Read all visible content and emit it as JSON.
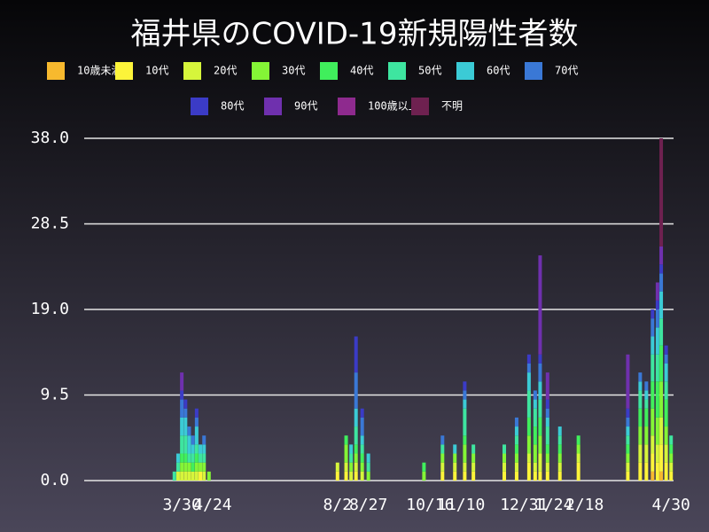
{
  "chart_data": {
    "type": "stacked-bar",
    "title": "福井県のCOVID-19新規陽性者数",
    "x": [
      83,
      86,
      89,
      92,
      95,
      98,
      101,
      104,
      107,
      111,
      215,
      222,
      226,
      230,
      235,
      240,
      285,
      300,
      310,
      318,
      325,
      350,
      360,
      370,
      375,
      379,
      385,
      395,
      410,
      450,
      460,
      465,
      470,
      474,
      477,
      481,
      485
    ],
    "xlim": [
      10,
      487
    ],
    "xticks": [
      {
        "value": 89,
        "label": "3/30"
      },
      {
        "value": 114,
        "label": "4/24"
      },
      {
        "value": 215,
        "label": "8/2"
      },
      {
        "value": 240,
        "label": "8/27"
      },
      {
        "value": 290,
        "label": "10/16"
      },
      {
        "value": 315,
        "label": "11/10"
      },
      {
        "value": 366,
        "label": "12/31"
      },
      {
        "value": 390,
        "label": "1/24"
      },
      {
        "value": 415,
        "label": "2/18"
      },
      {
        "value": 485,
        "label": "4/30"
      }
    ],
    "ylim": [
      0,
      38
    ],
    "yticks": [
      {
        "value": 0,
        "label": "0.0"
      },
      9.5,
      {
        "value": 19,
        "label": "19.0"
      },
      28.5,
      {
        "value": 38,
        "label": "38.0"
      }
    ],
    "grid": true,
    "series": [
      {
        "name": "10歳未満",
        "color": "#f7b92e",
        "values": [
          0,
          0,
          0,
          0,
          0,
          0,
          0,
          0,
          0,
          0,
          0,
          0,
          0,
          0,
          0,
          0,
          0,
          0,
          0,
          0,
          0,
          0,
          0,
          0,
          0,
          0,
          0,
          0,
          0,
          0,
          0,
          0,
          1,
          0,
          1,
          0,
          0
        ]
      },
      {
        "name": "10代",
        "color": "#fcf43a",
        "values": [
          0,
          0,
          0,
          0,
          0,
          0,
          0,
          1,
          0,
          0,
          1,
          1,
          0,
          1,
          0,
          0,
          0,
          1,
          1,
          1,
          1,
          1,
          1,
          2,
          1,
          1,
          1,
          1,
          2,
          1,
          2,
          2,
          2,
          2,
          3,
          2,
          1
        ]
      },
      {
        "name": "20代",
        "color": "#d6f53b",
        "values": [
          0,
          1,
          1,
          1,
          1,
          1,
          1,
          0,
          1,
          0,
          1,
          1,
          1,
          1,
          1,
          0,
          0,
          1,
          1,
          1,
          1,
          1,
          1,
          1,
          1,
          2,
          1,
          1,
          1,
          1,
          2,
          2,
          2,
          2,
          3,
          2,
          1
        ]
      },
      {
        "name": "30代",
        "color": "#84f536",
        "values": [
          0,
          0,
          1,
          1,
          1,
          0,
          1,
          1,
          1,
          1,
          0,
          2,
          1,
          1,
          1,
          1,
          1,
          1,
          1,
          2,
          1,
          1,
          1,
          2,
          2,
          2,
          1,
          1,
          1,
          1,
          2,
          2,
          3,
          3,
          4,
          2,
          1
        ]
      },
      {
        "name": "40代",
        "color": "#40ef5c",
        "values": [
          0,
          0,
          1,
          1,
          0,
          1,
          1,
          0,
          0,
          0,
          0,
          1,
          0,
          1,
          1,
          0,
          1,
          0,
          0,
          1,
          0,
          0,
          1,
          2,
          2,
          2,
          1,
          1,
          1,
          1,
          2,
          2,
          3,
          4,
          4,
          3,
          1
        ]
      },
      {
        "name": "50代",
        "color": "#3ee5a0",
        "values": [
          1,
          1,
          2,
          2,
          1,
          1,
          1,
          1,
          1,
          0,
          0,
          0,
          1,
          2,
          1,
          1,
          0,
          1,
          0,
          3,
          1,
          1,
          1,
          3,
          2,
          2,
          2,
          1,
          0,
          1,
          2,
          1,
          3,
          3,
          3,
          2,
          1
        ]
      },
      {
        "name": "60代",
        "color": "#3bcbd6",
        "values": [
          0,
          1,
          2,
          2,
          2,
          1,
          2,
          1,
          1,
          0,
          0,
          0,
          1,
          2,
          1,
          1,
          0,
          0,
          1,
          1,
          0,
          0,
          1,
          2,
          1,
          2,
          1,
          1,
          0,
          1,
          1,
          1,
          2,
          3,
          3,
          2,
          0
        ]
      },
      {
        "name": "70代",
        "color": "#3a78d6",
        "values": [
          0,
          0,
          2,
          1,
          1,
          1,
          1,
          0,
          1,
          0,
          0,
          0,
          0,
          4,
          2,
          0,
          0,
          1,
          0,
          1,
          0,
          0,
          1,
          1,
          1,
          2,
          1,
          0,
          0,
          1,
          1,
          1,
          2,
          2,
          2,
          1,
          0
        ]
      },
      {
        "name": "80代",
        "color": "#3b3bc6",
        "values": [
          0,
          0,
          1,
          1,
          0,
          0,
          1,
          0,
          0,
          0,
          0,
          0,
          0,
          4,
          1,
          0,
          0,
          0,
          0,
          1,
          0,
          0,
          0,
          1,
          0,
          1,
          1,
          0,
          0,
          1,
          0,
          0,
          1,
          1,
          1,
          1,
          0
        ]
      },
      {
        "name": "90代",
        "color": "#6f30ae",
        "values": [
          0,
          0,
          2,
          0,
          0,
          0,
          0,
          0,
          0,
          0,
          0,
          0,
          0,
          0,
          0,
          0,
          0,
          0,
          0,
          0,
          0,
          0,
          0,
          0,
          0,
          11,
          3,
          0,
          0,
          6,
          0,
          0,
          0,
          2,
          2,
          0,
          0
        ]
      },
      {
        "name": "100歳以上",
        "color": "#8e2a8e",
        "values": [
          0,
          0,
          0,
          0,
          0,
          0,
          0,
          0,
          0,
          0,
          0,
          0,
          0,
          0,
          0,
          0,
          0,
          0,
          0,
          0,
          0,
          0,
          0,
          0,
          0,
          0,
          0,
          0,
          0,
          0,
          0,
          0,
          0,
          0,
          0,
          0,
          0
        ]
      },
      {
        "name": "不明",
        "color": "#6e2150",
        "values": [
          0,
          0,
          0,
          0,
          0,
          0,
          0,
          0,
          0,
          0,
          0,
          0,
          0,
          0,
          0,
          0,
          0,
          0,
          0,
          0,
          0,
          0,
          0,
          0,
          0,
          0,
          0,
          0,
          0,
          0,
          0,
          0,
          0,
          0,
          12,
          0,
          0
        ]
      }
    ]
  }
}
